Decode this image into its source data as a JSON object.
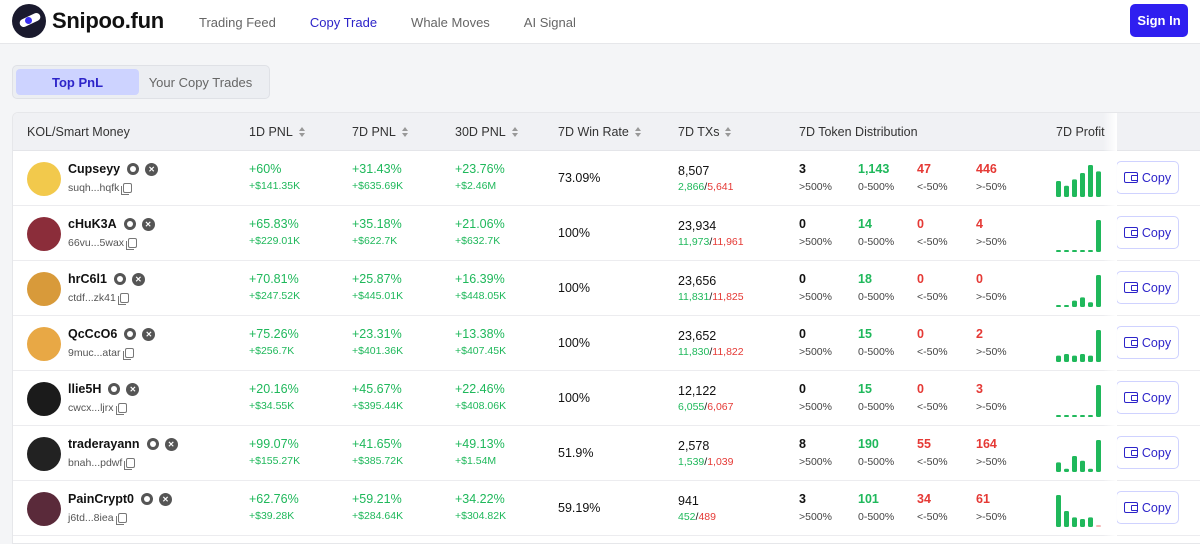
{
  "header": {
    "logo_text": "Snipoo.fun",
    "nav": [
      {
        "label": "Trading Feed",
        "active": false
      },
      {
        "label": "Copy Trade",
        "active": true
      },
      {
        "label": "Whale Moves",
        "active": false
      },
      {
        "label": "AI Signal",
        "active": false
      }
    ],
    "signin_label": "Sign In"
  },
  "tabs": [
    {
      "label": "Top PnL",
      "active": true
    },
    {
      "label": "Your Copy Trades",
      "active": false
    }
  ],
  "table": {
    "columns": [
      "KOL/Smart Money",
      "1D PNL",
      "7D PNL",
      "30D PNL",
      "7D Win Rate",
      "7D TXs",
      "7D Token Distribution",
      "7D Profit"
    ],
    "copy_label": "Copy",
    "dist_labels": [
      ">500%",
      "0-500%",
      "<-50%",
      ">-50%"
    ],
    "rows": [
      {
        "name": "Cupseyy",
        "addr": "suqh...hqfk",
        "d1_pct": "+60%",
        "d1_usd": "+$141.35K",
        "d7_pct": "+31.43%",
        "d7_usd": "+$635.69K",
        "d30_pct": "+23.76%",
        "d30_usd": "+$2.46M",
        "winrate": "73.09%",
        "txs": "8,507",
        "tx_buy": "2,866",
        "tx_sell": "5,641",
        "dist": [
          "3",
          "1,143",
          "47",
          "446"
        ],
        "profit_bars": [
          0.5,
          0.35,
          0.55,
          0.75,
          1.0,
          0.8
        ]
      },
      {
        "name": "cHuK3A",
        "addr": "66vu...5wax",
        "d1_pct": "+65.83%",
        "d1_usd": "+$229.01K",
        "d7_pct": "+35.18%",
        "d7_usd": "+$622.7K",
        "d30_pct": "+21.06%",
        "d30_usd": "+$632.7K",
        "winrate": "100%",
        "txs": "23,934",
        "tx_buy": "11,973",
        "tx_sell": "11,961",
        "dist": [
          "0",
          "14",
          "0",
          "4"
        ],
        "profit_bars": [
          0.05,
          0.05,
          0.05,
          0.05,
          0.05,
          1.0
        ]
      },
      {
        "name": "hrC6l1",
        "addr": "ctdf...zk41",
        "d1_pct": "+70.81%",
        "d1_usd": "+$247.52K",
        "d7_pct": "+25.87%",
        "d7_usd": "+$445.01K",
        "d30_pct": "+16.39%",
        "d30_usd": "+$448.05K",
        "winrate": "100%",
        "txs": "23,656",
        "tx_buy": "11,831",
        "tx_sell": "11,825",
        "dist": [
          "0",
          "18",
          "0",
          "0"
        ],
        "profit_bars": [
          0.05,
          0.05,
          0.2,
          0.3,
          0.15,
          1.0
        ]
      },
      {
        "name": "QcCcO6",
        "addr": "9muc...atar",
        "d1_pct": "+75.26%",
        "d1_usd": "+$256.7K",
        "d7_pct": "+23.31%",
        "d7_usd": "+$401.36K",
        "d30_pct": "+13.38%",
        "d30_usd": "+$407.45K",
        "winrate": "100%",
        "txs": "23,652",
        "tx_buy": "11,830",
        "tx_sell": "11,822",
        "dist": [
          "0",
          "15",
          "0",
          "2"
        ],
        "profit_bars": [
          0.2,
          0.25,
          0.2,
          0.25,
          0.2,
          1.0
        ]
      },
      {
        "name": "llie5H",
        "addr": "cwcx...ljrx",
        "d1_pct": "+20.16%",
        "d1_usd": "+$34.55K",
        "d7_pct": "+45.67%",
        "d7_usd": "+$395.44K",
        "d30_pct": "+22.46%",
        "d30_usd": "+$408.06K",
        "winrate": "100%",
        "txs": "12,122",
        "tx_buy": "6,055",
        "tx_sell": "6,067",
        "dist": [
          "0",
          "15",
          "0",
          "3"
        ],
        "profit_bars": [
          0.05,
          0.05,
          0.05,
          0.05,
          0.05,
          1.0
        ]
      },
      {
        "name": "traderayann",
        "addr": "bnah...pdwf",
        "d1_pct": "+99.07%",
        "d1_usd": "+$155.27K",
        "d7_pct": "+41.65%",
        "d7_usd": "+$385.72K",
        "d30_pct": "+49.13%",
        "d30_usd": "+$1.54M",
        "winrate": "51.9%",
        "txs": "2,578",
        "tx_buy": "1,539",
        "tx_sell": "1,039",
        "dist": [
          "8",
          "190",
          "55",
          "164"
        ],
        "profit_bars": [
          0.3,
          0.1,
          0.5,
          0.35,
          0.1,
          1.0
        ]
      },
      {
        "name": "PainCrypt0",
        "addr": "j6td...8iea",
        "d1_pct": "+62.76%",
        "d1_usd": "+$39.28K",
        "d7_pct": "+59.21%",
        "d7_usd": "+$284.64K",
        "d30_pct": "+34.22%",
        "d30_usd": "+$304.82K",
        "winrate": "59.19%",
        "txs": "941",
        "tx_buy": "452",
        "tx_sell": "489",
        "dist": [
          "3",
          "101",
          "34",
          "61"
        ],
        "profit_bars": [
          1.0,
          0.5,
          0.3,
          0.25,
          0.3,
          0.05
        ]
      }
    ]
  },
  "colors": {
    "accent": "#2f1ff0",
    "positive": "#1fb85b",
    "negative": "#e53935",
    "bar_negative": "#f5b5b5"
  },
  "icons": [
    "logo-icon",
    "sort-icon",
    "eye-icon",
    "x-social-icon",
    "copy-address-icon",
    "wallet-icon"
  ]
}
